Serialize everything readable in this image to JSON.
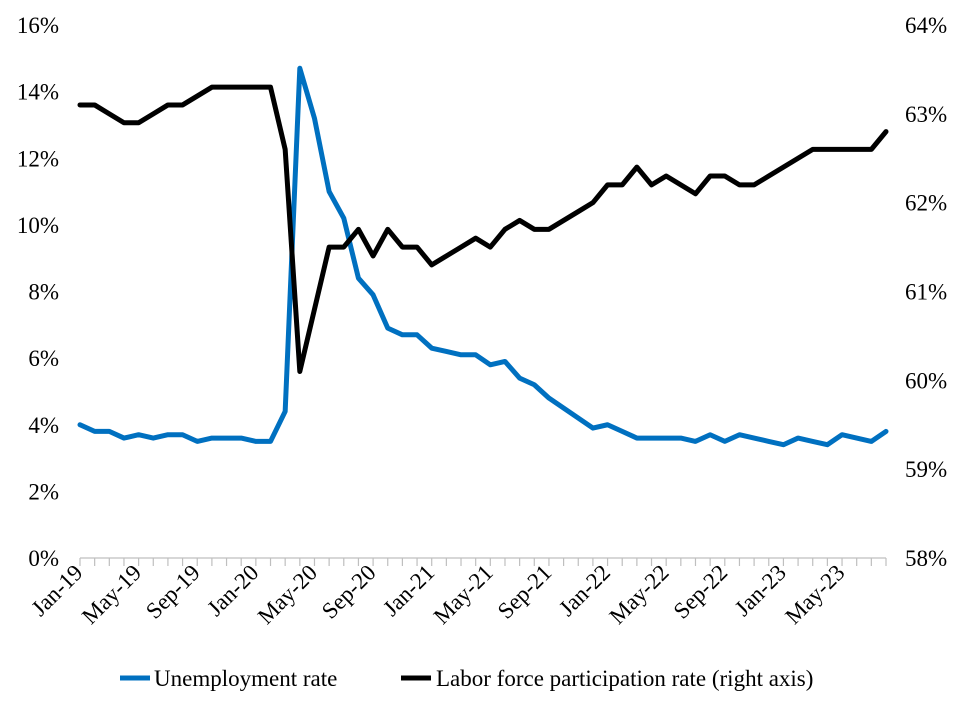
{
  "chart_data": {
    "type": "line",
    "title": "",
    "xlabel": "",
    "ylabel": "",
    "x_tick_labels": [
      "Jan-19",
      "May-19",
      "Sep-19",
      "Jan-20",
      "May-20",
      "Sep-20",
      "Jan-21",
      "May-21",
      "Sep-21",
      "Jan-22",
      "May-22",
      "Sep-22",
      "Jan-23",
      "May-23"
    ],
    "ylim_left": [
      0,
      16
    ],
    "ylim_right": [
      58,
      64
    ],
    "y_left_ticks": [
      "0%",
      "2%",
      "4%",
      "6%",
      "8%",
      "10%",
      "12%",
      "14%",
      "16%"
    ],
    "y_right_ticks": [
      "58%",
      "59%",
      "60%",
      "61%",
      "62%",
      "63%",
      "64%"
    ],
    "legend_position": "bottom",
    "series": [
      {
        "name": "Unemployment rate",
        "axis": "left",
        "color": "#0070c0",
        "values": [
          4.0,
          3.8,
          3.8,
          3.6,
          3.7,
          3.6,
          3.7,
          3.7,
          3.5,
          3.6,
          3.6,
          3.6,
          3.5,
          3.5,
          4.4,
          14.7,
          13.2,
          11.0,
          10.2,
          8.4,
          7.9,
          6.9,
          6.7,
          6.7,
          6.3,
          6.2,
          6.1,
          6.1,
          5.8,
          5.9,
          5.4,
          5.2,
          4.8,
          4.5,
          4.2,
          3.9,
          4.0,
          3.8,
          3.6,
          3.6,
          3.6,
          3.6,
          3.5,
          3.7,
          3.5,
          3.7,
          3.6,
          3.5,
          3.4,
          3.6,
          3.5,
          3.4,
          3.7,
          3.6,
          3.5,
          3.8
        ]
      },
      {
        "name": "Labor force participation rate (right axis)",
        "axis": "right",
        "color": "#000000",
        "values": [
          63.1,
          63.1,
          63.0,
          62.9,
          62.9,
          63.0,
          63.1,
          63.1,
          63.2,
          63.3,
          63.3,
          63.3,
          63.3,
          63.3,
          62.6,
          60.1,
          60.8,
          61.5,
          61.5,
          61.7,
          61.4,
          61.7,
          61.5,
          61.5,
          61.3,
          61.4,
          61.5,
          61.6,
          61.5,
          61.7,
          61.8,
          61.7,
          61.7,
          61.8,
          61.9,
          62.0,
          62.2,
          62.2,
          62.4,
          62.2,
          62.3,
          62.2,
          62.1,
          62.3,
          62.3,
          62.2,
          62.2,
          62.3,
          62.4,
          62.5,
          62.6,
          62.6,
          62.6,
          62.6,
          62.6,
          62.8
        ]
      }
    ]
  }
}
